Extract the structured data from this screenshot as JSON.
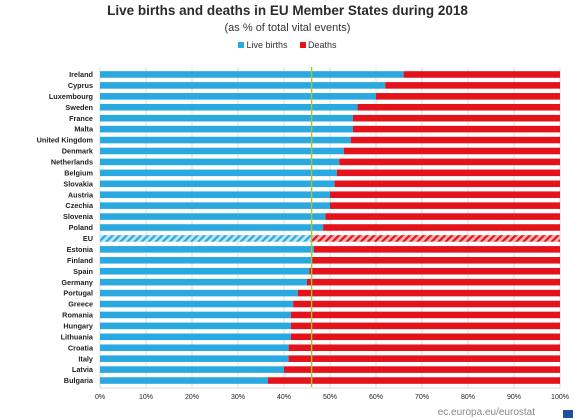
{
  "chart_data": {
    "type": "bar",
    "orientation": "horizontal",
    "stacked": true,
    "title": "Live births and deaths in EU Member States during 2018",
    "subtitle": "(as % of total vital events)",
    "categories": [
      "Ireland",
      "Cyprus",
      "Luxembourg",
      "Sweden",
      "France",
      "Malta",
      "United Kingdom",
      "Denmark",
      "Netherlands",
      "Belgium",
      "Slovakia",
      "Austria",
      "Czechia",
      "Slovenia",
      "Poland",
      "EU",
      "Estonia",
      "Finland",
      "Spain",
      "Germany",
      "Portugal",
      "Greece",
      "Romania",
      "Hungary",
      "Lithuania",
      "Croatia",
      "Italy",
      "Latvia",
      "Bulgaria"
    ],
    "series": [
      {
        "name": "Live births",
        "color": "#29a9e0",
        "values": [
          66,
          62,
          60,
          56,
          55,
          55,
          54.5,
          53,
          52,
          51.5,
          51,
          50,
          50,
          49,
          48.5,
          46,
          46.5,
          46,
          45.5,
          45,
          43,
          42,
          41.5,
          41.5,
          41.5,
          41,
          41,
          40,
          36.5
        ]
      },
      {
        "name": "Deaths",
        "color": "#e3121b",
        "values": [
          34,
          38,
          40,
          44,
          45,
          45,
          45.5,
          47,
          48,
          48.5,
          49,
          50,
          50,
          51,
          51.5,
          54,
          53.5,
          54,
          54.5,
          55,
          57,
          58,
          58.5,
          58.5,
          58.5,
          59,
          59,
          60,
          63.5
        ]
      }
    ],
    "highlight_category": "EU",
    "reference_line": {
      "value": 46,
      "color": "#a8c23a"
    },
    "xlim": [
      0,
      100
    ],
    "x_ticks": [
      "0%",
      "10%",
      "20%",
      "30%",
      "40%",
      "50%",
      "60%",
      "70%",
      "80%",
      "90%",
      "100%"
    ],
    "grid": true,
    "legend_position": "top-center"
  },
  "footer": {
    "source_text": "ec.europa.eu/eurostat",
    "logo_color": "#1f4ea3"
  }
}
